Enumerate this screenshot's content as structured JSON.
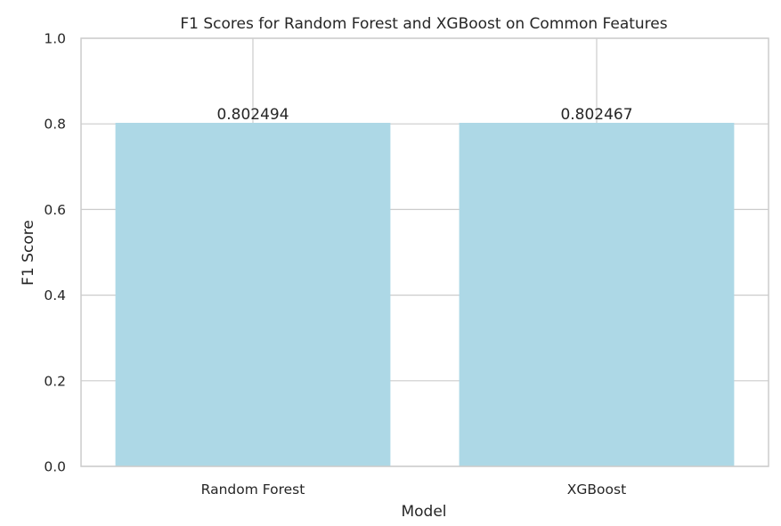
{
  "chart_data": {
    "type": "bar",
    "title": "F1 Scores for Random Forest and XGBoost on Common Features",
    "xlabel": "Model",
    "ylabel": "F1 Score",
    "categories": [
      "Random Forest",
      "XGBoost"
    ],
    "values": [
      0.802494,
      0.802467
    ],
    "data_labels": [
      "0.802494",
      "0.802467"
    ],
    "ylim": [
      0,
      1.0
    ],
    "y_ticks": [
      0.0,
      0.2,
      0.4,
      0.6,
      0.8,
      1.0
    ],
    "y_tick_labels": [
      "0.0",
      "0.2",
      "0.4",
      "0.6",
      "0.8",
      "1.0"
    ],
    "grid": true,
    "bar_color": "#add8e6",
    "grid_color": "#cccccc",
    "frame_color": "#cccccc",
    "background": "#ffffff"
  }
}
